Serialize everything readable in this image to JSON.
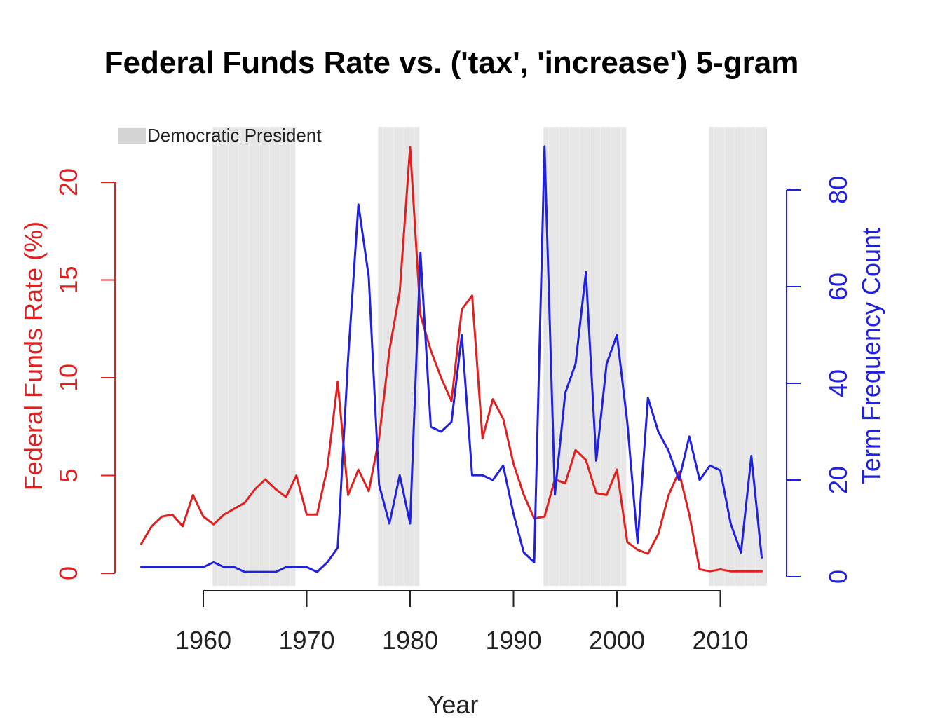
{
  "chart_data": {
    "type": "line",
    "title": "Federal Funds Rate vs. ('tax', 'increase') 5-gram",
    "xlabel": "Year",
    "ylabel_left": "Federal Funds Rate (%)",
    "ylabel_right": "Term Frequency Count",
    "xlim": [
      1954,
      2014
    ],
    "ylim_left": [
      0,
      22
    ],
    "ylim_right": [
      0,
      90
    ],
    "x_ticks": [
      "1960",
      "1970",
      "1980",
      "1990",
      "2000",
      "2010"
    ],
    "y_ticks_left": [
      "0",
      "5",
      "10",
      "15",
      "20"
    ],
    "y_ticks_right": [
      "0",
      "20",
      "40",
      "60",
      "80"
    ],
    "legend": {
      "label": "Democratic President",
      "color": "#d9d9d9",
      "position": "top-left"
    },
    "shaded_periods": [
      [
        1961,
        1969
      ],
      [
        1977,
        1981
      ],
      [
        1993,
        2001
      ],
      [
        2009,
        2015
      ]
    ],
    "colors": {
      "left_axis": "#e02020",
      "right_axis": "#2020e0",
      "shade": "#e6e6e6"
    },
    "grid": false,
    "series": [
      {
        "name": "Federal Funds Rate (%)",
        "axis": "left",
        "color": "#e02020",
        "x": [
          1954,
          1955,
          1956,
          1957,
          1958,
          1959,
          1960,
          1961,
          1962,
          1963,
          1964,
          1965,
          1966,
          1967,
          1968,
          1969,
          1970,
          1971,
          1972,
          1973,
          1974,
          1975,
          1976,
          1977,
          1978,
          1979,
          1980,
          1981,
          1982,
          1983,
          1984,
          1985,
          1986,
          1987,
          1988,
          1989,
          1990,
          1991,
          1992,
          1993,
          1994,
          1995,
          1996,
          1997,
          1998,
          1999,
          2000,
          2001,
          2002,
          2003,
          2004,
          2005,
          2006,
          2007,
          2008,
          2009,
          2010,
          2011,
          2012,
          2013,
          2014
        ],
        "y": [
          1.5,
          2.4,
          2.9,
          3.0,
          2.4,
          4.0,
          2.9,
          2.5,
          3.0,
          3.3,
          3.6,
          4.3,
          4.8,
          4.3,
          3.9,
          5.0,
          3.0,
          3.0,
          5.4,
          9.8,
          4.0,
          5.3,
          4.2,
          6.9,
          11.4,
          14.4,
          21.8,
          13.2,
          11.4,
          10.0,
          8.8,
          13.5,
          14.2,
          6.9,
          8.9,
          7.9,
          5.6,
          4.0,
          2.8,
          2.9,
          4.8,
          4.6,
          6.3,
          5.8,
          4.1,
          4.0,
          5.3,
          1.6,
          1.2,
          1.0,
          2.0,
          4.0,
          5.2,
          3.0,
          0.2,
          0.1,
          0.2,
          0.1,
          0.1,
          0.1,
          0.1
        ]
      },
      {
        "name": "Term Frequency Count",
        "axis": "right",
        "color": "#2020e0",
        "x": [
          1954,
          1955,
          1956,
          1957,
          1958,
          1959,
          1960,
          1961,
          1962,
          1963,
          1964,
          1965,
          1966,
          1967,
          1968,
          1969,
          1970,
          1971,
          1972,
          1973,
          1974,
          1975,
          1976,
          1977,
          1978,
          1979,
          1980,
          1981,
          1982,
          1983,
          1984,
          1985,
          1986,
          1987,
          1988,
          1989,
          1990,
          1991,
          1992,
          1993,
          1994,
          1995,
          1996,
          1997,
          1998,
          1999,
          2000,
          2001,
          2002,
          2003,
          2004,
          2005,
          2006,
          2007,
          2008,
          2009,
          2010,
          2011,
          2012,
          2013,
          2014
        ],
        "y": [
          2,
          2,
          2,
          2,
          2,
          2,
          2,
          3,
          2,
          2,
          1,
          1,
          1,
          1,
          2,
          2,
          2,
          1,
          3,
          6,
          45,
          77,
          62,
          19,
          11,
          21,
          11,
          67,
          31,
          30,
          32,
          50,
          21,
          21,
          20,
          23,
          13,
          5,
          3,
          89,
          17,
          38,
          44,
          63,
          24,
          44,
          50,
          32,
          7,
          37,
          30,
          26,
          20,
          29,
          20,
          23,
          22,
          11,
          5,
          25,
          4
        ]
      }
    ]
  }
}
